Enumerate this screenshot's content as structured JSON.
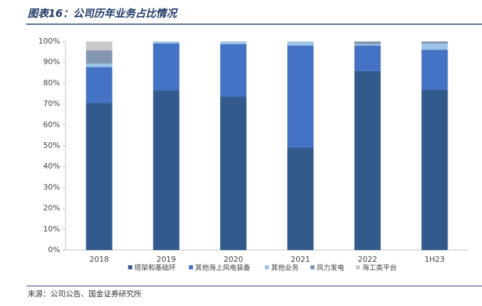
{
  "header": {
    "title": "图表16：公司历年业务占比情况"
  },
  "chart_data": {
    "type": "stacked_bar",
    "categories": [
      "2018",
      "2019",
      "2020",
      "2021",
      "2022",
      "1H23"
    ],
    "series": [
      {
        "name": "塔架和基础环",
        "color": "#335a8c",
        "values": [
          70.5,
          76.5,
          73.5,
          49.0,
          85.8,
          76.8
        ]
      },
      {
        "name": "其他海上风电装备",
        "color": "#4472c4",
        "values": [
          17.2,
          22.5,
          25.2,
          49.0,
          12.2,
          19.2
        ]
      },
      {
        "name": "其他业务",
        "color": "#9dc3e6",
        "values": [
          1.7,
          1.0,
          1.3,
          2.0,
          0.7,
          3.0
        ]
      },
      {
        "name": "风力发电",
        "color": "#8497b0",
        "values": [
          6.3,
          0,
          0,
          0,
          1.3,
          1.0
        ]
      },
      {
        "name": "海工类平台",
        "color": "#c9c9c9",
        "values": [
          4.3,
          0,
          0,
          0,
          0,
          0
        ]
      }
    ],
    "ylim": [
      0,
      100
    ],
    "yticks": [
      {
        "value": 0,
        "label": "0%"
      },
      {
        "value": 10,
        "label": "10%"
      },
      {
        "value": 20,
        "label": "20%"
      },
      {
        "value": 30,
        "label": "30%"
      },
      {
        "value": 40,
        "label": "40%"
      },
      {
        "value": 50,
        "label": "50%"
      },
      {
        "value": 60,
        "label": "60%"
      },
      {
        "value": 70,
        "label": "70%"
      },
      {
        "value": 80,
        "label": "80%"
      },
      {
        "value": 90,
        "label": "90%"
      },
      {
        "value": 100,
        "label": "100%"
      }
    ],
    "legend": "bottom"
  },
  "footer": {
    "source": "来源：公司公告、国金证券研究所"
  }
}
